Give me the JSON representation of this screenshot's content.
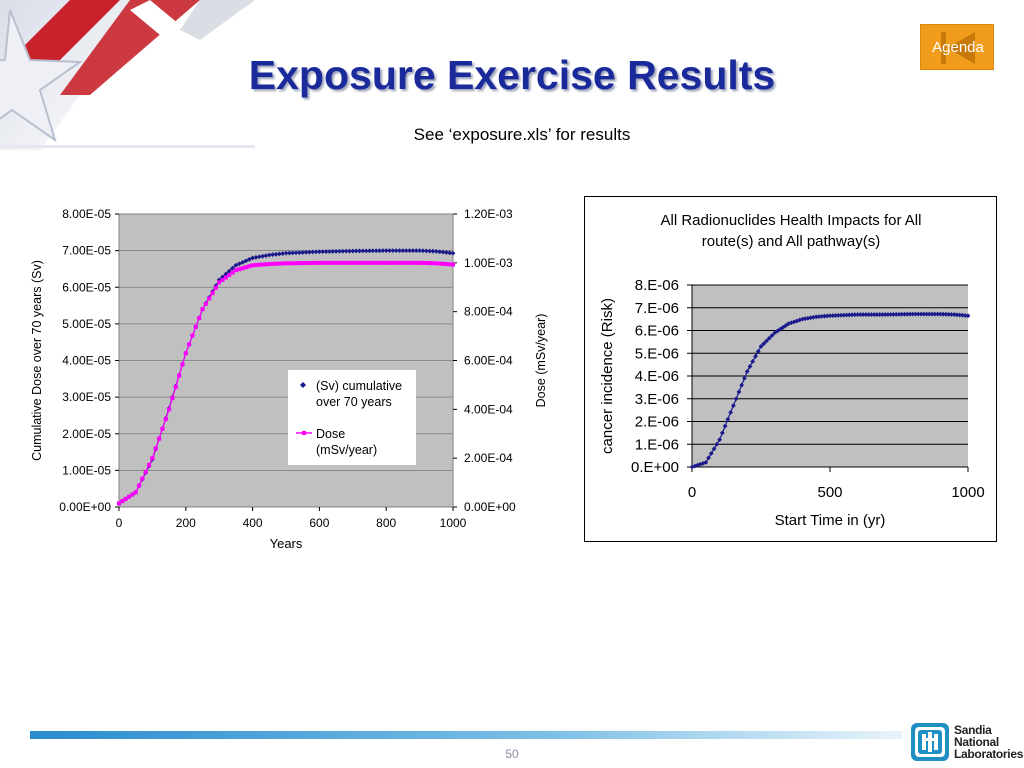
{
  "slide": {
    "title": "Exposure Exercise Results",
    "subtitle": "See ‘exposure.xls’ for results",
    "agenda_button": "Agenda",
    "page_number": "50",
    "logo": {
      "line1": "Sandia",
      "line2": "National",
      "line3": "Laboratories"
    }
  },
  "chart_data": [
    {
      "type": "line",
      "title": "",
      "xlabel": "Years",
      "ylabel": "Cumulative Dose over 70 years (Sv)",
      "y2label": "Dose (mSv/year)",
      "xlim": [
        0,
        1000
      ],
      "ylim": [
        0,
        8e-05
      ],
      "y2lim": [
        0,
        0.0012
      ],
      "x_ticks": [
        "0",
        "200",
        "400",
        "600",
        "800",
        "1000"
      ],
      "y_ticks": [
        "0.00E+00",
        "1.00E-05",
        "2.00E-05",
        "3.00E-05",
        "4.00E-05",
        "5.00E-05",
        "6.00E-05",
        "7.00E-05",
        "8.00E-05"
      ],
      "y2_ticks": [
        "0.00E+00",
        "2.00E-04",
        "4.00E-04",
        "6.00E-04",
        "8.00E-04",
        "1.00E-03",
        "1.20E-03"
      ],
      "grid": true,
      "legend_position": "center-right",
      "series": [
        {
          "name": "(Sv) cumulative over 70 years",
          "axis": "left",
          "marker": "diamond",
          "color": "#1a1a8c",
          "x": [
            0,
            50,
            100,
            150,
            200,
            250,
            300,
            350,
            400,
            450,
            500,
            600,
            700,
            800,
            900,
            950,
            1000
          ],
          "y": [
            1e-06,
            4e-06,
            1.3e-05,
            2.7e-05,
            4.2e-05,
            5.4e-05,
            6.2e-05,
            6.6e-05,
            6.8e-05,
            6.88e-05,
            6.93e-05,
            6.97e-05,
            6.99e-05,
            7e-05,
            7e-05,
            6.98e-05,
            6.93e-05
          ]
        },
        {
          "name": "Dose (mSv/year)",
          "axis": "right",
          "marker": "square",
          "color": "#ff00ff",
          "x": [
            0,
            50,
            100,
            150,
            200,
            250,
            300,
            350,
            400,
            450,
            500,
            600,
            700,
            800,
            900,
            950,
            1000
          ],
          "y": [
            1.5e-05,
            6e-05,
            0.0002,
            0.0004,
            0.00063,
            0.00081,
            0.00092,
            0.00097,
            0.00099,
            0.000995,
            0.000998,
            0.001,
            0.001,
            0.001,
            0.001,
            0.000998,
            0.000993
          ]
        }
      ]
    },
    {
      "type": "scatter",
      "title": "All Radionuclides Health Impacts for All route(s) and All pathway(s)",
      "title_lines": [
        "All Radionuclides Health Impacts for All",
        "route(s) and All pathway(s)"
      ],
      "xlabel": "Start Time in (yr)",
      "ylabel": "cancer incidence (Risk)",
      "xlim": [
        0,
        1000
      ],
      "ylim": [
        0,
        8e-06
      ],
      "x_ticks": [
        "0",
        "500",
        "1000"
      ],
      "y_ticks": [
        "0.E+00",
        "1.E-06",
        "2.E-06",
        "3.E-06",
        "4.E-06",
        "5.E-06",
        "6.E-06",
        "7.E-06",
        "8.E-06"
      ],
      "grid": true,
      "series": [
        {
          "name": "",
          "marker": "diamond",
          "color": "#1a1a8c",
          "x": [
            0,
            50,
            100,
            150,
            200,
            250,
            300,
            350,
            400,
            450,
            500,
            600,
            700,
            800,
            900,
            950,
            1000
          ],
          "y": [
            0.0,
            2e-07,
            1.2e-06,
            2.7e-06,
            4.2e-06,
            5.3e-06,
            5.9e-06,
            6.3e-06,
            6.5e-06,
            6.6e-06,
            6.65e-06,
            6.7e-06,
            6.7e-06,
            6.72e-06,
            6.72e-06,
            6.7e-06,
            6.65e-06
          ]
        }
      ]
    }
  ]
}
